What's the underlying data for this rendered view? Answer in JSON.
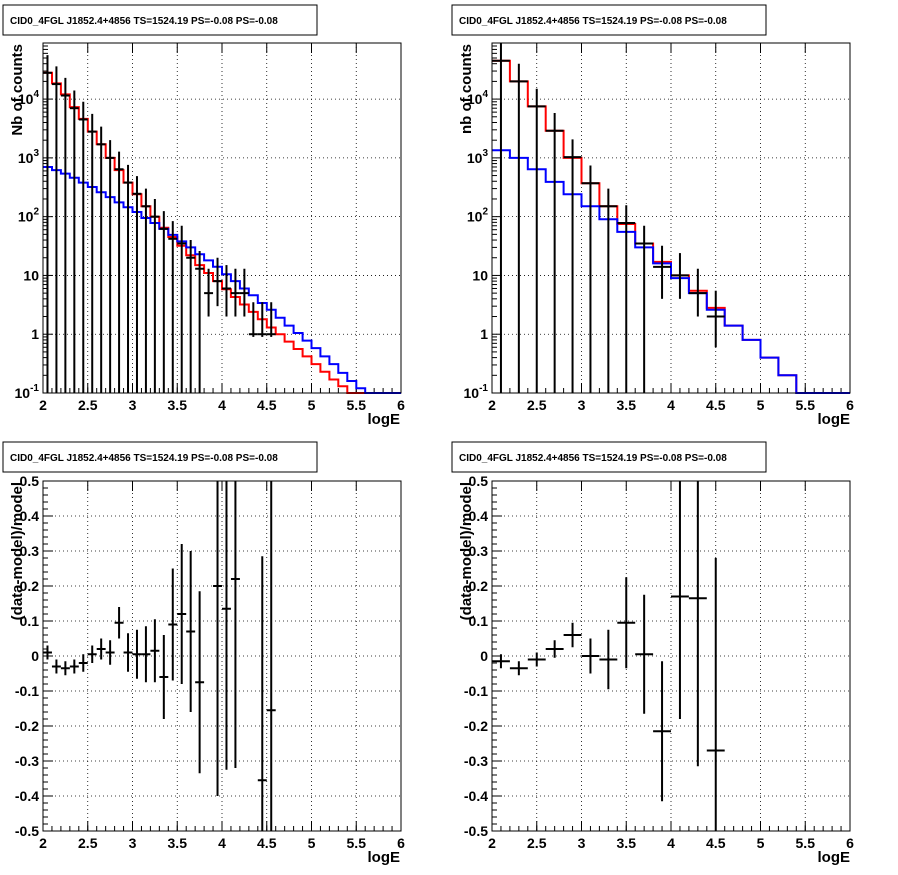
{
  "chart_data": [
    {
      "type": "line",
      "title": "CID0_4FGL J1852.4+4856 TS=1524.19 PS=-0.08 PS=-0.08",
      "xlabel": "logE",
      "ylabel": "Nb of counts",
      "log_y": true,
      "xlim": [
        2,
        6
      ],
      "ylim": [
        0.1,
        90000
      ],
      "grid": true,
      "x_ticks": [
        "2",
        "2.5",
        "3",
        "3.5",
        "4",
        "4.5",
        "5",
        "5.5",
        "6"
      ],
      "y_ticks": [
        "10^-1",
        "1",
        "10",
        "10^2",
        "10^3",
        "10^4"
      ],
      "bin_edges": [
        2.0,
        2.1,
        2.2,
        2.3,
        2.4,
        2.5,
        2.6,
        2.7,
        2.8,
        2.9,
        3.0,
        3.1,
        3.2,
        3.3,
        3.4,
        3.5,
        3.6,
        3.7,
        3.8,
        3.9,
        4.0,
        4.1,
        4.2,
        4.3,
        4.4,
        4.5,
        4.6,
        4.7,
        4.8,
        4.9,
        5.0,
        5.1,
        5.2,
        5.3,
        5.4,
        5.5,
        5.6,
        5.7,
        5.8,
        5.9,
        6.0
      ],
      "series": [
        {
          "color": "#ff0000",
          "style": "histogram",
          "values": [
            28000,
            18500,
            12000,
            7300,
            4600,
            2800,
            1700,
            1000,
            620,
            380,
            240,
            150,
            100,
            65,
            45,
            32,
            22,
            15,
            11,
            8,
            5.8,
            4.3,
            3.2,
            2.4,
            1.8,
            1.3,
            1.0,
            0.75,
            0.56,
            0.42,
            0.31,
            0.23,
            0.17,
            0.13,
            0.1,
            0.1,
            0.1,
            0.1,
            0.1,
            0.1
          ]
        },
        {
          "color": "#0000ff",
          "style": "histogram",
          "values": [
            700,
            620,
            540,
            460,
            380,
            320,
            260,
            215,
            175,
            145,
            120,
            95,
            78,
            62,
            49,
            38,
            30,
            23,
            18,
            14,
            10.5,
            8,
            6,
            4.6,
            3.4,
            2.6,
            1.9,
            1.4,
            1.05,
            0.78,
            0.58,
            0.42,
            0.31,
            0.22,
            0.16,
            0.12,
            0.1,
            0.1,
            0.1,
            0.1
          ]
        },
        {
          "color": "#000000",
          "style": "data_points",
          "x": [
            2.05,
            2.15,
            2.25,
            2.35,
            2.45,
            2.55,
            2.65,
            2.75,
            2.85,
            2.95,
            3.05,
            3.15,
            3.25,
            3.35,
            3.45,
            3.55,
            3.65,
            3.75,
            3.85,
            3.95,
            4.05,
            4.15,
            4.25,
            4.35,
            4.45,
            4.55
          ],
          "y": [
            28000,
            18000,
            11500,
            7000,
            4500,
            2800,
            1700,
            1000,
            640,
            380,
            245,
            150,
            100,
            62,
            42,
            35,
            20,
            13,
            5,
            8,
            6,
            5,
            5,
            1,
            1,
            1
          ],
          "yerr_low": [
            28000,
            18000,
            11500,
            7000,
            4500,
            2800,
            1700,
            1000,
            640,
            380,
            245,
            150,
            100,
            62,
            42,
            35,
            20,
            13,
            3,
            5,
            4,
            3,
            3,
            0.1,
            0.1,
            0.1
          ],
          "yerr_high": [
            28000,
            18000,
            11500,
            7000,
            4500,
            2800,
            1700,
            1000,
            640,
            380,
            245,
            150,
            100,
            62,
            42,
            35,
            20,
            13,
            8,
            12,
            9,
            8,
            8,
            2.5,
            2.5,
            2.5
          ]
        }
      ]
    },
    {
      "type": "line",
      "title": "CID0_4FGL J1852.4+4856 TS=1524.19 PS=-0.08 PS=-0.08",
      "xlabel": "logE",
      "ylabel": "nb of counts",
      "log_y": true,
      "xlim": [
        2,
        6
      ],
      "ylim": [
        0.1,
        90000
      ],
      "grid": true,
      "x_ticks": [
        "2",
        "2.5",
        "3",
        "3.5",
        "4",
        "4.5",
        "5",
        "5.5",
        "6"
      ],
      "y_ticks": [
        "10^-1",
        "1",
        "10",
        "10^2",
        "10^3",
        "10^4"
      ],
      "bin_edges": [
        2.0,
        2.2,
        2.4,
        2.6,
        2.8,
        3.0,
        3.2,
        3.4,
        3.6,
        3.8,
        4.0,
        4.2,
        4.4,
        4.6,
        4.8,
        5.0,
        5.2,
        5.4,
        5.6,
        5.8,
        6.0
      ],
      "series": [
        {
          "color": "#ff0000",
          "style": "histogram",
          "values": [
            45000,
            20000,
            7500,
            2900,
            1000,
            370,
            150,
            75,
            35,
            17,
            10,
            5.5,
            2.8,
            1.4,
            0.8,
            0.4,
            0.2,
            0.1,
            0.1,
            0.1
          ]
        },
        {
          "color": "#0000ff",
          "style": "histogram",
          "values": [
            1350,
            1000,
            640,
            390,
            240,
            150,
            90,
            55,
            30,
            16,
            9,
            5,
            2.6,
            1.4,
            0.8,
            0.4,
            0.2,
            0.1,
            0.1,
            0.1
          ]
        },
        {
          "color": "#000000",
          "style": "data_points",
          "x": [
            2.1,
            2.3,
            2.5,
            2.7,
            2.9,
            3.1,
            3.3,
            3.5,
            3.7,
            3.9,
            4.1,
            4.3,
            4.5
          ],
          "y": [
            45000,
            20000,
            7500,
            2900,
            1030,
            370,
            150,
            78,
            35,
            14,
            10,
            5,
            2
          ],
          "yerr_low": [
            45000,
            20000,
            7500,
            2900,
            1030,
            370,
            150,
            78,
            35,
            10,
            6,
            3,
            1.4
          ],
          "yerr_high": [
            45000,
            20000,
            7500,
            2900,
            1030,
            370,
            150,
            78,
            35,
            18,
            14,
            8,
            3.5
          ]
        }
      ]
    },
    {
      "type": "scatter",
      "title": "CID0_4FGL J1852.4+4856 TS=1524.19 PS=-0.08 PS=-0.08",
      "xlabel": "logE",
      "ylabel": "(data-model)/model",
      "xlim": [
        2,
        6
      ],
      "ylim": [
        -0.5,
        0.5
      ],
      "grid": true,
      "x_ticks": [
        "2",
        "2.5",
        "3",
        "3.5",
        "4",
        "4.5",
        "5",
        "5.5",
        "6"
      ],
      "y_ticks": [
        "-0.5",
        "-0.4",
        "-0.3",
        "-0.2",
        "-0.1",
        "0",
        "0.1",
        "0.2",
        "0.3",
        "0.4",
        "0.5"
      ],
      "series": [
        {
          "color": "#000000",
          "x": [
            2.05,
            2.15,
            2.25,
            2.35,
            2.45,
            2.55,
            2.65,
            2.75,
            2.85,
            2.95,
            3.05,
            3.15,
            3.25,
            3.35,
            3.45,
            3.55,
            3.65,
            3.75,
            3.95,
            4.05,
            4.15,
            4.45,
            4.55
          ],
          "y": [
            0.01,
            -0.03,
            -0.035,
            -0.03,
            -0.02,
            0.005,
            0.02,
            0.01,
            0.095,
            0.01,
            0.005,
            0.005,
            0.015,
            -0.06,
            0.09,
            0.12,
            0.07,
            -0.075,
            0.2,
            0.135,
            0.22,
            -0.355,
            -0.155
          ],
          "yerr": [
            0.02,
            0.02,
            0.02,
            0.02,
            0.025,
            0.025,
            0.03,
            0.035,
            0.045,
            0.055,
            0.07,
            0.08,
            0.09,
            0.12,
            0.16,
            0.2,
            0.23,
            0.26,
            0.6,
            0.46,
            0.54,
            0.64,
            0.69
          ],
          "xerr": 0.05
        }
      ]
    },
    {
      "type": "scatter",
      "title": "CID0_4FGL J1852.4+4856 TS=1524.19 PS=-0.08 PS=-0.08",
      "xlabel": "logE",
      "ylabel": "(data-model)/model",
      "xlim": [
        2,
        6
      ],
      "ylim": [
        -0.5,
        0.5
      ],
      "grid": true,
      "x_ticks": [
        "2",
        "2.5",
        "3",
        "3.5",
        "4",
        "4.5",
        "5",
        "5.5",
        "6"
      ],
      "y_ticks": [
        "-0.5",
        "-0.4",
        "-0.3",
        "-0.2",
        "-0.1",
        "0",
        "0.1",
        "0.2",
        "0.3",
        "0.4",
        "0.5"
      ],
      "series": [
        {
          "color": "#000000",
          "x": [
            2.1,
            2.3,
            2.5,
            2.7,
            2.9,
            3.1,
            3.3,
            3.5,
            3.7,
            3.9,
            4.1,
            4.3,
            4.5
          ],
          "y": [
            -0.015,
            -0.035,
            -0.01,
            0.02,
            0.06,
            0.0,
            -0.01,
            0.095,
            0.005,
            -0.215,
            0.17,
            0.165,
            -0.27
          ],
          "yerr": [
            0.02,
            0.02,
            0.02,
            0.025,
            0.035,
            0.05,
            0.085,
            0.13,
            0.17,
            0.2,
            0.35,
            0.48,
            0.55
          ],
          "xerr": 0.1
        }
      ]
    }
  ]
}
